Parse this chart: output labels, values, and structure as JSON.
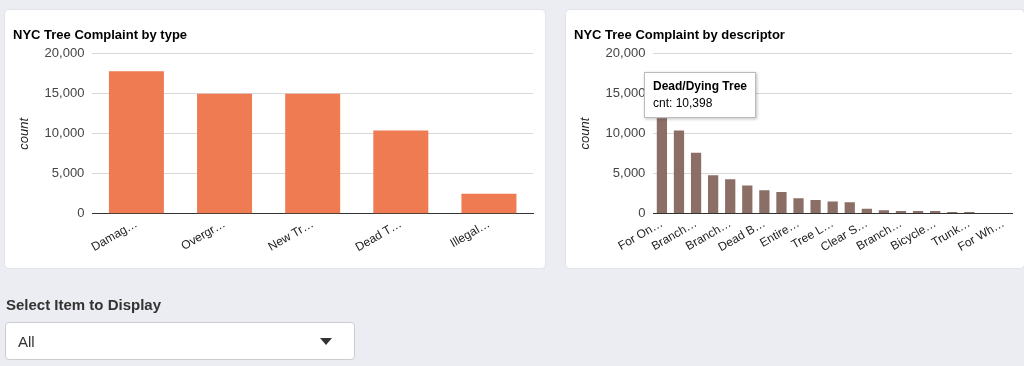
{
  "chart_data": [
    {
      "type": "bar",
      "title": "NYC Tree Complaint by type",
      "ylabel": "count",
      "categories": [
        "Damag…",
        "Overgr…",
        "New Tr…",
        "Dead T…",
        "Illegal…"
      ],
      "values": [
        17800,
        15000,
        15000,
        10400,
        2500
      ],
      "color": "#ef7b52",
      "ylim": [
        0,
        20000
      ],
      "yticks": [
        {
          "value": 0,
          "label": "0"
        },
        {
          "value": 5000,
          "label": "5,000"
        },
        {
          "value": 10000,
          "label": "10,000"
        },
        {
          "value": 15000,
          "label": "15,000"
        },
        {
          "value": 20000,
          "label": "20,000"
        }
      ],
      "grid": "y",
      "legend": false
    },
    {
      "type": "bar",
      "title": "NYC Tree Complaint by descriptor",
      "ylabel": "count",
      "categories": [
        "For On…",
        null,
        "Branch…",
        null,
        "Branch…",
        null,
        "Dead B…",
        null,
        "Entire…",
        null,
        "Tree L…",
        null,
        "Clear S…",
        null,
        "Branch…",
        null,
        "Bicycle…",
        null,
        "Trunk…",
        null,
        "For Wh…"
      ],
      "values": [
        11900,
        10398,
        7600,
        4800,
        4300,
        3500,
        2900,
        2700,
        1900,
        1700,
        1500,
        1400,
        600,
        400,
        300,
        300,
        300,
        200,
        200,
        null,
        null
      ],
      "color": "#8b6f66",
      "ylim": [
        0,
        20000
      ],
      "yticks": [
        {
          "value": 0,
          "label": "0"
        },
        {
          "value": 5000,
          "label": "5,000"
        },
        {
          "value": 10000,
          "label": "10,000"
        },
        {
          "value": 15000,
          "label": "15,000"
        },
        {
          "value": 20000,
          "label": "20,000"
        }
      ],
      "grid": "y",
      "legend": false,
      "annotations": [
        "Dead/Dying Tree",
        "cnt: 10,398"
      ]
    },
    {
      "type": "other",
      "title": "Select Item to Display",
      "annotations": [
        "All"
      ]
    }
  ]
}
